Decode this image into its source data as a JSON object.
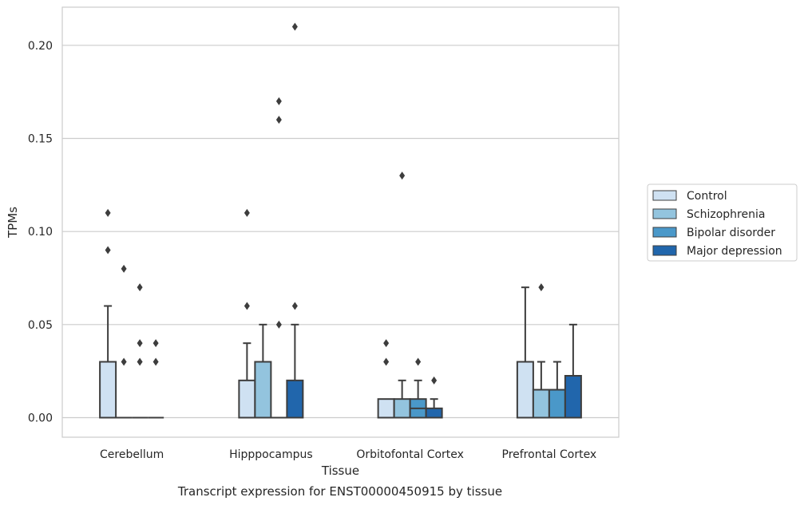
{
  "chart_data": {
    "type": "box",
    "xlabel": "Tissue",
    "ylabel": "TPMs",
    "caption": "Transcript expression for ENST00000450915 by tissue",
    "ylim": [
      -0.0105,
      0.2205
    ],
    "yticks": [
      0.0,
      0.05,
      0.1,
      0.15,
      0.2
    ],
    "ytick_labels": [
      "0.00",
      "0.05",
      "0.10",
      "0.15",
      "0.20"
    ],
    "grid": "horizontal",
    "legend_position": "right",
    "categories": [
      "Cerebellum",
      "Hipppocampus",
      "Orbitofontal Cortex",
      "Prefrontal Cortex"
    ],
    "series": [
      {
        "name": "Control",
        "color": "#cfe1f2",
        "boxes": [
          {
            "q1": 0.0,
            "median": 0.0,
            "q3": 0.03,
            "whisker_low": 0.0,
            "whisker_high": 0.06,
            "outliers": [
              0.09,
              0.11
            ]
          },
          {
            "q1": 0.0,
            "median": 0.0,
            "q3": 0.02,
            "whisker_low": 0.0,
            "whisker_high": 0.04,
            "outliers": [
              0.06,
              0.11
            ]
          },
          {
            "q1": 0.0,
            "median": 0.0,
            "q3": 0.01,
            "whisker_low": 0.0,
            "whisker_high": 0.01,
            "outliers": [
              0.03,
              0.04
            ]
          },
          {
            "q1": 0.0,
            "median": 0.0,
            "q3": 0.03,
            "whisker_low": 0.0,
            "whisker_high": 0.07,
            "outliers": []
          }
        ]
      },
      {
        "name": "Schizophrenia",
        "color": "#93c4de",
        "boxes": [
          {
            "q1": 0.0,
            "median": 0.0,
            "q3": 0.0,
            "whisker_low": 0.0,
            "whisker_high": 0.0,
            "outliers": [
              0.03,
              0.08
            ]
          },
          {
            "q1": 0.0,
            "median": 0.0,
            "q3": 0.03,
            "whisker_low": 0.0,
            "whisker_high": 0.05,
            "outliers": []
          },
          {
            "q1": 0.0,
            "median": 0.0,
            "q3": 0.01,
            "whisker_low": 0.0,
            "whisker_high": 0.02,
            "outliers": [
              0.13
            ]
          },
          {
            "q1": 0.0,
            "median": 0.0,
            "q3": 0.015,
            "whisker_low": 0.0,
            "whisker_high": 0.03,
            "outliers": [
              0.07
            ]
          }
        ]
      },
      {
        "name": "Bipolar disorder",
        "color": "#4a98c9",
        "boxes": [
          {
            "q1": 0.0,
            "median": 0.0,
            "q3": 0.0,
            "whisker_low": 0.0,
            "whisker_high": 0.0,
            "outliers": [
              0.03,
              0.04,
              0.07
            ]
          },
          {
            "q1": 0.0,
            "median": 0.0,
            "q3": 0.0,
            "whisker_low": 0.0,
            "whisker_high": 0.0,
            "outliers": [
              0.05,
              0.16,
              0.17
            ]
          },
          {
            "q1": 0.0,
            "median": 0.005,
            "q3": 0.01,
            "whisker_low": 0.0,
            "whisker_high": 0.02,
            "outliers": [
              0.03
            ]
          },
          {
            "q1": 0.0,
            "median": 0.0,
            "q3": 0.015,
            "whisker_low": 0.0,
            "whisker_high": 0.03,
            "outliers": []
          }
        ]
      },
      {
        "name": "Major depression",
        "color": "#2166ac",
        "boxes": [
          {
            "q1": 0.0,
            "median": 0.0,
            "q3": 0.0,
            "whisker_low": 0.0,
            "whisker_high": 0.0,
            "outliers": [
              0.03,
              0.04
            ]
          },
          {
            "q1": 0.0,
            "median": 0.0,
            "q3": 0.02,
            "whisker_low": 0.0,
            "whisker_high": 0.05,
            "outliers": [
              0.06,
              0.21
            ]
          },
          {
            "q1": 0.0,
            "median": 0.0,
            "q3": 0.005,
            "whisker_low": 0.0,
            "whisker_high": 0.01,
            "outliers": [
              0.02
            ]
          },
          {
            "q1": 0.0,
            "median": 0.0,
            "q3": 0.0225,
            "whisker_low": 0.0,
            "whisker_high": 0.05,
            "outliers": []
          }
        ]
      }
    ]
  }
}
